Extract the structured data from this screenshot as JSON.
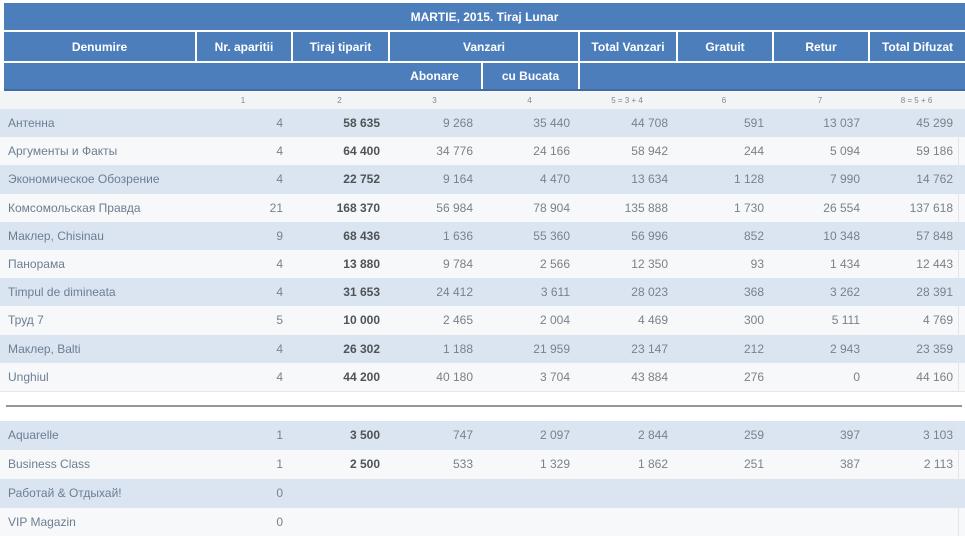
{
  "title": "MARTIE, 2015. Tiraj Lunar",
  "table": {
    "columns": [
      "Denumire",
      "Nr. aparitii",
      "Tiraj tiparit",
      "Vanzari",
      "Total Vanzari",
      "Gratuit",
      "Retur",
      "Total Difuzat"
    ],
    "subcolumns": [
      "Abonare",
      "cu Bucata"
    ],
    "index_row": [
      "1",
      "2",
      "3",
      "4",
      "5 = 3 + 4",
      "6",
      "7",
      "8 = 5 + 6"
    ],
    "rows_main": [
      {
        "name": "Антенна",
        "values": [
          "4",
          "58 635",
          "9 268",
          "35 440",
          "44 708",
          "591",
          "13 037",
          "45 299"
        ]
      },
      {
        "name": "Аргументы и Факты",
        "values": [
          "4",
          "64 400",
          "34 776",
          "24 166",
          "58 942",
          "244",
          "5 094",
          "59 186"
        ]
      },
      {
        "name": "Экономическое Обозрение",
        "values": [
          "4",
          "22 752",
          "9 164",
          "4 470",
          "13 634",
          "1 128",
          "7 990",
          "14 762"
        ]
      },
      {
        "name": "Комсомольская Правда",
        "values": [
          "21",
          "168 370",
          "56 984",
          "78 904",
          "135 888",
          "1 730",
          "26 554",
          "137 618"
        ]
      },
      {
        "name": "Маклер, Chisinau",
        "values": [
          "9",
          "68 436",
          "1 636",
          "55 360",
          "56 996",
          "852",
          "10 348",
          "57 848"
        ]
      },
      {
        "name": "Панорама",
        "values": [
          "4",
          "13 880",
          "9 784",
          "2 566",
          "12 350",
          "93",
          "1 434",
          "12 443"
        ]
      },
      {
        "name": "Timpul de dimineata",
        "values": [
          "4",
          "31 653",
          "24 412",
          "3 611",
          "28 023",
          "368",
          "3 262",
          "28 391"
        ]
      },
      {
        "name": "Труд 7",
        "values": [
          "5",
          "10 000",
          "2 465",
          "2 004",
          "4 469",
          "300",
          "5 111",
          "4 769"
        ]
      },
      {
        "name": "Маклер, Balti",
        "values": [
          "4",
          "26 302",
          "1 188",
          "21 959",
          "23 147",
          "212",
          "2 943",
          "23 359"
        ]
      },
      {
        "name": "Unghiul",
        "values": [
          "4",
          "44 200",
          "40 180",
          "3 704",
          "43 884",
          "276",
          "0",
          "44 160"
        ]
      }
    ],
    "rows_extra": [
      {
        "name": "Aquarelle",
        "values": [
          "1",
          "3 500",
          "747",
          "2 097",
          "2 844",
          "259",
          "397",
          "3 103"
        ]
      },
      {
        "name": "Business Class",
        "values": [
          "1",
          "2 500",
          "533",
          "1 329",
          "1 862",
          "251",
          "387",
          "2 113"
        ]
      },
      {
        "name": "Работай & Отдыхай!",
        "values": [
          "0",
          "",
          "",
          "",
          "",
          "",
          "",
          ""
        ]
      },
      {
        "name": "VIP Magazin",
        "values": [
          "0",
          "",
          "",
          "",
          "",
          "",
          "",
          ""
        ]
      }
    ]
  },
  "colors": {
    "header_blue": "#4d7ebc",
    "band_blue": "#dbe5f1",
    "band_white": "#f7f8f9",
    "separator_line": "#969696"
  }
}
